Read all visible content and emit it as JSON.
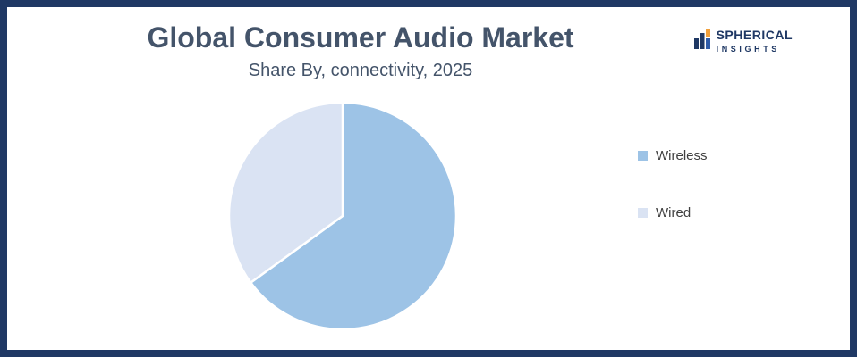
{
  "page": {
    "background_color": "#FFFFFF",
    "frame_border_color": "#1F3864"
  },
  "header": {
    "title": "Global Consumer Audio Market",
    "subtitle": "Share By, connectivity, 2025",
    "title_color": "#44546A"
  },
  "logo": {
    "primary": "SPHERICAL",
    "secondary": "INSIGHTS",
    "icon": "spherical-insights-mark",
    "navy": "#1F3864",
    "orange": "#F0A03C"
  },
  "chart_data": {
    "type": "pie",
    "title": "Global Consumer Audio Market",
    "subtitle": "Share By, connectivity, 2025",
    "labels": [
      "Wireless",
      "Wired"
    ],
    "values": [
      65,
      35
    ],
    "colors": [
      "#9DC3E6",
      "#DAE3F3"
    ],
    "start_angle_deg": 0,
    "direction": "clockwise",
    "slice_border_color": "#FFFFFF",
    "legend_position": "right",
    "legend": [
      {
        "label": "Wireless",
        "color": "#9DC3E6"
      },
      {
        "label": "Wired",
        "color": "#DAE3F3"
      }
    ]
  }
}
